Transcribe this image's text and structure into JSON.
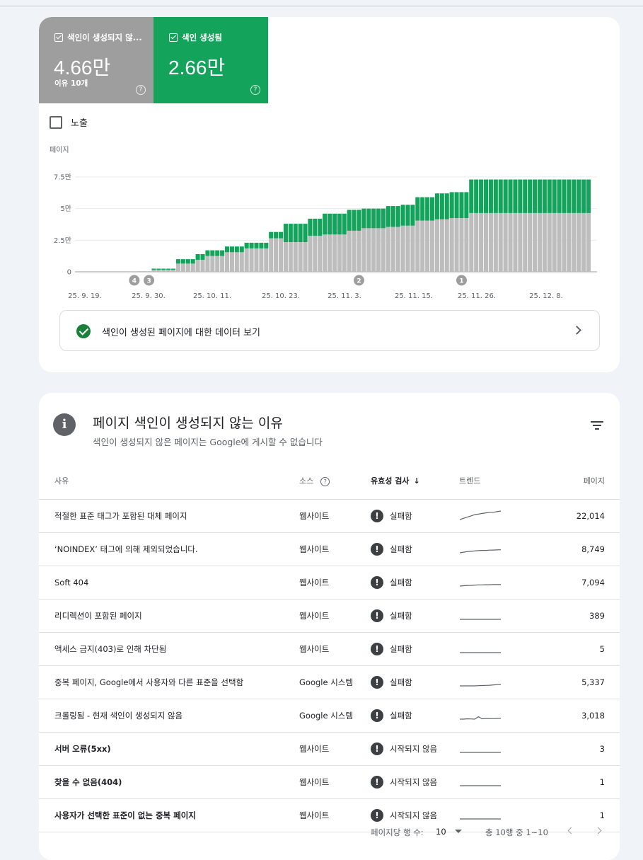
{
  "summary": {
    "not_indexed": {
      "label": "색인이 생성되지 않...",
      "value": "4.66만",
      "sub": "이유 10개"
    },
    "indexed": {
      "label": "색인 생성됨",
      "value": "2.66만"
    },
    "help": "?"
  },
  "impressions_label": "노출",
  "colors": {
    "indexed": "#13a35a",
    "not_indexed": "#bdbdbd",
    "not_indexed_tile": "#9e9e9e"
  },
  "chart_data": {
    "type": "bar",
    "stacked": true,
    "ylabel": "페이지",
    "y_ticks": [
      "7.5만",
      "5만",
      "2.5만",
      "0"
    ],
    "y_tick_values": [
      75000,
      50000,
      25000,
      0
    ],
    "ylim": [
      0,
      75000
    ],
    "x_tick_labels": [
      "25. 9. 19.",
      "25. 9. 30.",
      "25. 10. 11.",
      "25. 10. 23.",
      "25. 11. 3.",
      "25. 11. 15.",
      "25. 11. 26.",
      "25. 12. 8."
    ],
    "annotations": [
      {
        "label": "4",
        "bar": 12
      },
      {
        "label": "3",
        "bar": 15
      },
      {
        "label": "2",
        "bar": 58
      },
      {
        "label": "1",
        "bar": 79
      }
    ],
    "series": [
      {
        "name": "색인이 생성되지 않음",
        "color": "#bdbdbd",
        "values": [
          0,
          0,
          0,
          0,
          0,
          0,
          0,
          0,
          0,
          0,
          0,
          0,
          0,
          500,
          500,
          500,
          1500,
          1500,
          1500,
          1500,
          1500,
          6500,
          6500,
          6500,
          6500,
          9500,
          9500,
          12500,
          12500,
          12500,
          12500,
          15500,
          15500,
          15500,
          15500,
          18500,
          18500,
          18500,
          18500,
          18500,
          26500,
          26500,
          26500,
          23500,
          23500,
          23500,
          23500,
          23500,
          28500,
          28500,
          28500,
          29500,
          29500,
          29500,
          29500,
          29500,
          32500,
          32500,
          32500,
          34500,
          34500,
          34500,
          34500,
          34500,
          35500,
          35500,
          35500,
          36500,
          36500,
          36500,
          40500,
          40500,
          40500,
          40500,
          41500,
          41500,
          41500,
          42500,
          42500,
          42500,
          42500,
          46500,
          46500,
          46500,
          46500,
          46500,
          46500,
          46500,
          46500,
          46500,
          46500,
          46500,
          46500,
          46500,
          46500,
          46500,
          46500,
          46500,
          46500,
          46500,
          46500,
          46500,
          46500,
          46500,
          46500,
          46500
        ]
      },
      {
        "name": "색인 생성됨",
        "color": "#13a35a",
        "values": [
          0,
          0,
          0,
          0,
          0,
          0,
          0,
          0,
          0,
          0,
          0,
          0,
          0,
          0,
          0,
          0,
          1000,
          1000,
          1000,
          1000,
          1000,
          3500,
          3500,
          3500,
          3500,
          4500,
          4500,
          4500,
          4500,
          4500,
          4500,
          4500,
          4500,
          4500,
          4500,
          4500,
          4500,
          4500,
          4500,
          4500,
          5000,
          5000,
          5000,
          14500,
          14500,
          14500,
          14500,
          14500,
          13500,
          13500,
          13500,
          16500,
          16500,
          16500,
          16500,
          16500,
          16500,
          16500,
          16500,
          15500,
          15500,
          15500,
          15500,
          15500,
          16500,
          16500,
          16500,
          16500,
          16500,
          16500,
          18500,
          18500,
          18500,
          18500,
          20500,
          20500,
          20500,
          20500,
          20500,
          20500,
          20500,
          26500,
          26500,
          26500,
          26500,
          26500,
          26500,
          26500,
          26500,
          26500,
          26500,
          26500,
          26500,
          26500,
          26500,
          26500,
          26500,
          26500,
          26500,
          26500,
          26500,
          26500,
          26500,
          26500,
          26500,
          26500
        ]
      }
    ]
  },
  "view_indexed_label": "색인이 생성된 페이지에 대한 데이터 보기",
  "section": {
    "title": "페이지 색인이 생성되지 않는 이유",
    "subtitle": "색인이 생성되지 않은 페이지는 Google에 게시할 수 없습니다",
    "info_icon": "i",
    "filter_icon": "filter-icon"
  },
  "table": {
    "headers": {
      "reason": "사유",
      "source": "소스",
      "validation": "유효성 검사",
      "sort_arrow": "↓",
      "trend": "트렌드",
      "pages": "페이지"
    },
    "rows": [
      {
        "reason": "적절한 표준 태그가 포함된 대체 페이지",
        "source": "웹사이트",
        "status": "실패함",
        "pages": "22,014",
        "trend": [
          0,
          1,
          2,
          3,
          4,
          4.5,
          5,
          5.5,
          6,
          6,
          6.5,
          7
        ],
        "bold": false
      },
      {
        "reason": "‘NOINDEX’ 태그에 의해 제외되었습니다.",
        "source": "웹사이트",
        "status": "실패함",
        "pages": "8,749",
        "trend": [
          0,
          0.5,
          1,
          1.2,
          1.5,
          1.8,
          2,
          2,
          2.2,
          2.3,
          2.4,
          2.5
        ],
        "bold": false
      },
      {
        "reason": "Soft 404",
        "source": "웹사이트",
        "status": "실패함",
        "pages": "7,094",
        "trend": [
          0,
          0.3,
          0.5,
          0.6,
          0.8,
          1,
          1,
          1.1,
          1.1,
          1.2,
          1.2,
          1.2
        ],
        "bold": false
      },
      {
        "reason": "리디렉션이 포함된 페이지",
        "source": "웹사이트",
        "status": "실패함",
        "pages": "389",
        "trend": [
          0,
          0,
          0,
          0,
          0,
          0,
          0,
          0,
          0,
          0,
          0,
          0
        ],
        "bold": false
      },
      {
        "reason": "액세스 금지(403)로 인해 차단됨",
        "source": "웹사이트",
        "status": "실패함",
        "pages": "5",
        "trend": [
          0,
          0,
          0,
          0,
          0,
          0,
          0,
          0,
          0,
          0,
          0,
          0
        ],
        "bold": false
      },
      {
        "reason": "중복 페이지, Google에서 사용자와 다른 표준을 선택함",
        "source": "Google 시스템",
        "status": "실패함",
        "pages": "5,337",
        "trend": [
          0,
          0,
          0,
          0,
          0,
          0.2,
          0.3,
          0.4,
          0.5,
          0.8,
          1,
          1.2
        ],
        "bold": false
      },
      {
        "reason": "크롤링됨 - 현재 색인이 생성되지 않음",
        "source": "Google 시스템",
        "status": "실패함",
        "pages": "3,018",
        "trend": [
          0,
          0,
          0.3,
          0.2,
          0,
          2,
          0.3,
          0.5,
          0.5,
          0.4,
          0.6,
          0.8
        ],
        "bold": false
      },
      {
        "reason": "서버 오류(5xx)",
        "source": "웹사이트",
        "status": "시작되지 않음",
        "pages": "3",
        "trend": [
          0,
          0,
          0,
          0,
          0,
          0,
          0,
          0,
          0,
          0,
          0,
          0
        ],
        "bold": true
      },
      {
        "reason": "찾을 수 없음(404)",
        "source": "웹사이트",
        "status": "시작되지 않음",
        "pages": "1",
        "trend": [
          0,
          0,
          0,
          0,
          0,
          0,
          0,
          0,
          0,
          0,
          0,
          0
        ],
        "bold": true
      },
      {
        "reason": "사용자가 선택한 표준이 없는 중복 페이지",
        "source": "웹사이트",
        "status": "시작되지 않음",
        "pages": "1",
        "trend": [
          0,
          0,
          0,
          0,
          0,
          0,
          0,
          0,
          0,
          0,
          0,
          0
        ],
        "bold": true
      }
    ]
  },
  "pagination": {
    "rows_per_page_label": "페이지당 행 수:",
    "rows_per_page": "10",
    "range": "총 10행 중 1~10"
  }
}
